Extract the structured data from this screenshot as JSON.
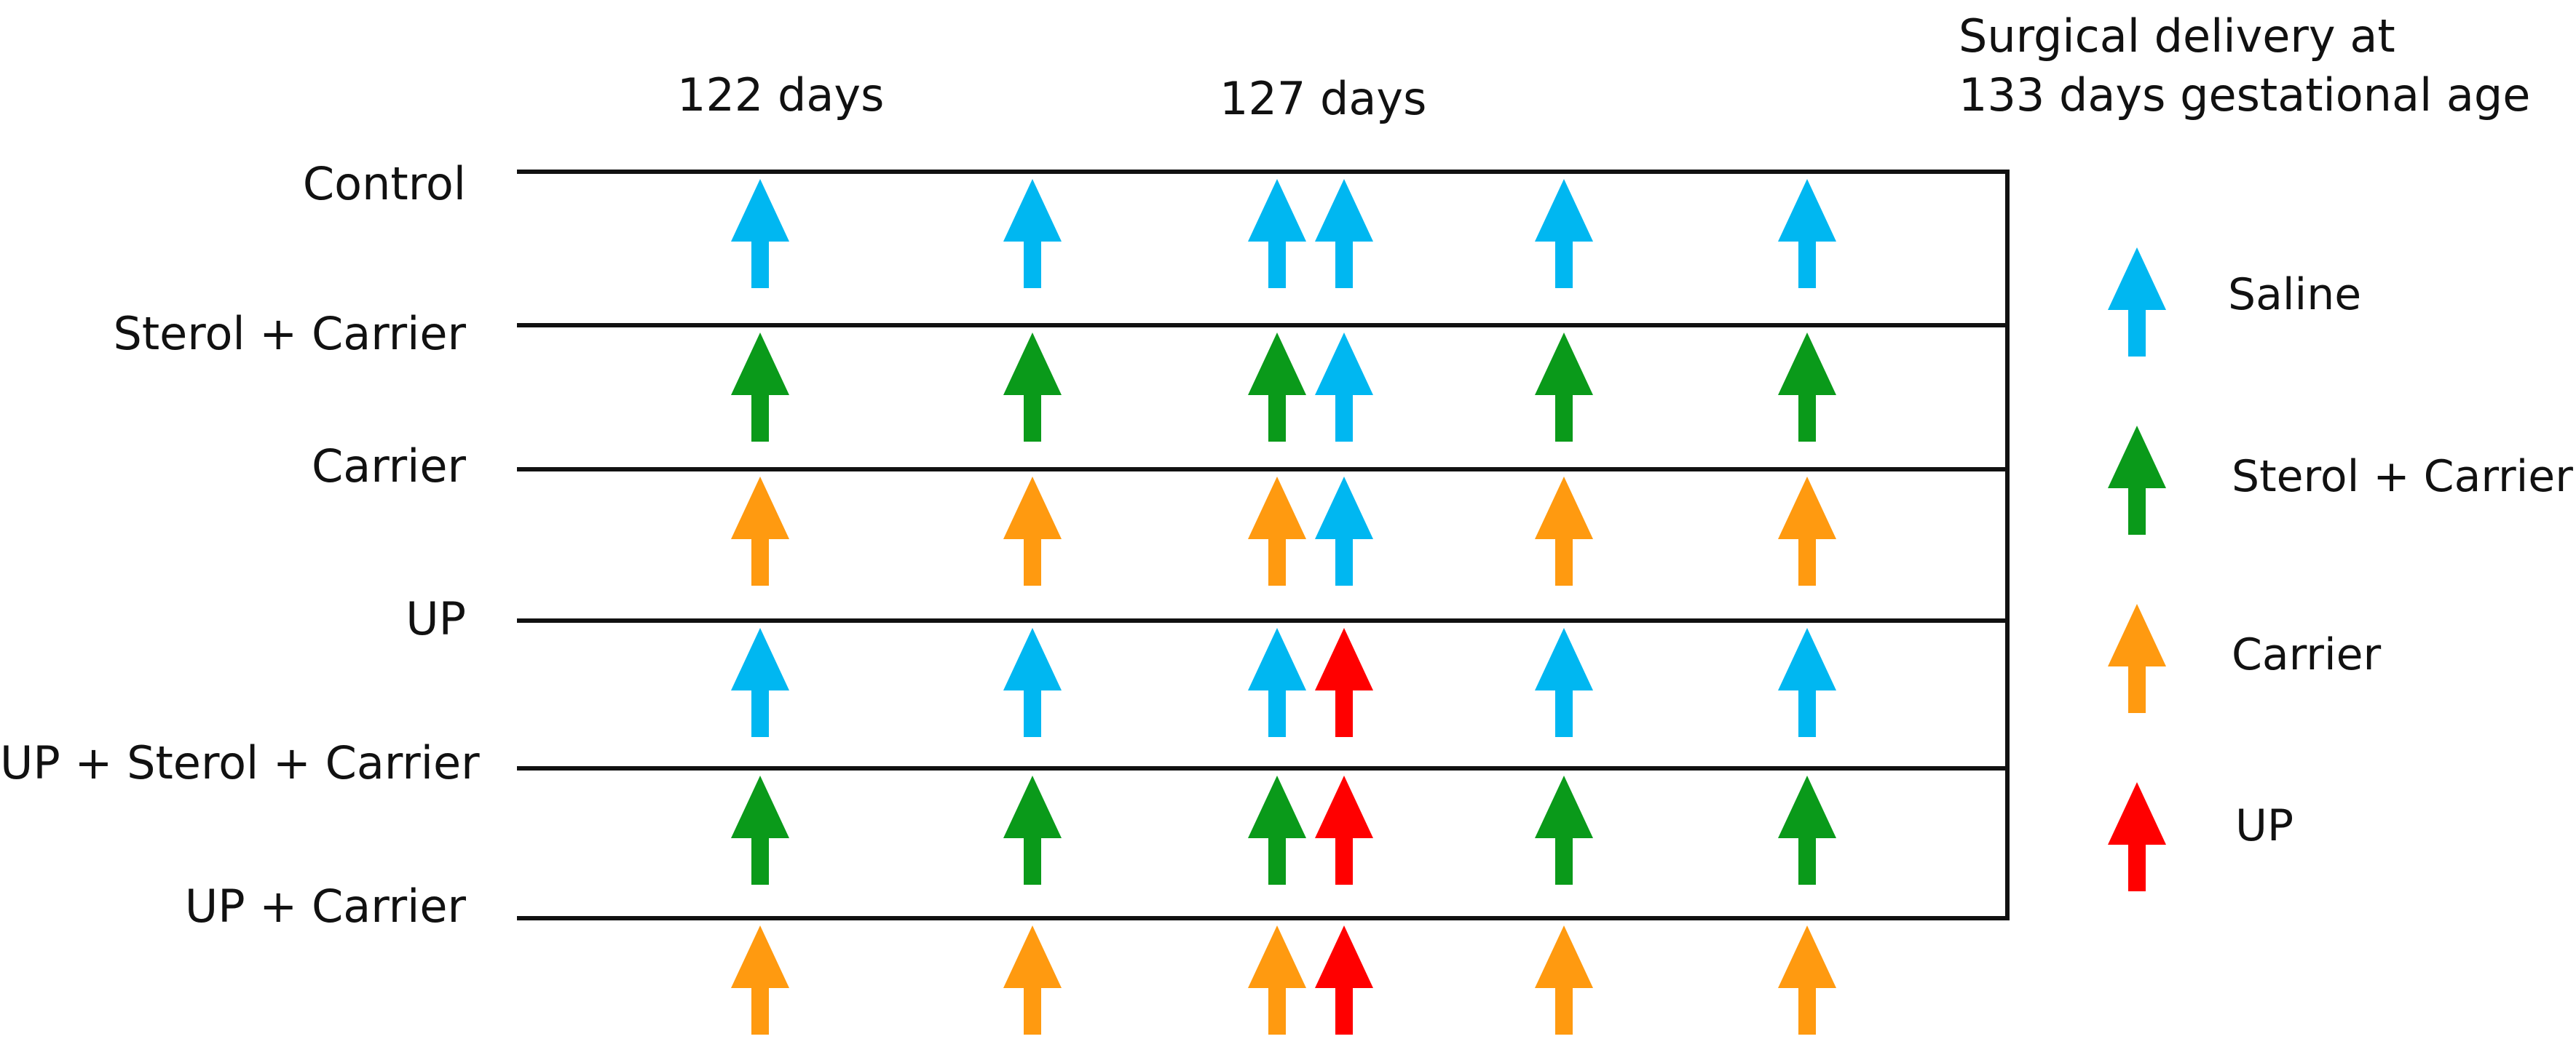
{
  "colors": {
    "saline": "#00b7f1",
    "sterol_carrier": "#0a9a1a",
    "carrier": "#ff9a10",
    "up": "#ff0000",
    "line": "#111111"
  },
  "timepoints": [
    "122 days",
    "127 days"
  ],
  "delivery_note": [
    "Surgical delivery at",
    "133 days gestational age"
  ],
  "groups": [
    {
      "label": "Control",
      "arrows": [
        "saline",
        "saline",
        "saline",
        "saline",
        "saline",
        "saline"
      ]
    },
    {
      "label": "Sterol + Carrier",
      "arrows": [
        "sterol_carrier",
        "sterol_carrier",
        "sterol_carrier",
        "saline",
        "sterol_carrier",
        "sterol_carrier"
      ]
    },
    {
      "label": "Carrier",
      "arrows": [
        "carrier",
        "carrier",
        "carrier",
        "saline",
        "carrier",
        "carrier"
      ]
    },
    {
      "label": "UP",
      "arrows": [
        "saline",
        "saline",
        "saline",
        "up",
        "saline",
        "saline"
      ]
    },
    {
      "label": "UP + Sterol + Carrier",
      "arrows": [
        "sterol_carrier",
        "sterol_carrier",
        "sterol_carrier",
        "up",
        "sterol_carrier",
        "sterol_carrier"
      ]
    },
    {
      "label": "UP + Carrier",
      "arrows": [
        "carrier",
        "carrier",
        "carrier",
        "up",
        "carrier",
        "carrier"
      ]
    }
  ],
  "legend": [
    {
      "key": "saline",
      "label": "Saline"
    },
    {
      "key": "sterol_carrier",
      "label": "Sterol + Carrier"
    },
    {
      "key": "carrier",
      "label": "Carrier"
    },
    {
      "key": "up",
      "label": "UP"
    }
  ]
}
